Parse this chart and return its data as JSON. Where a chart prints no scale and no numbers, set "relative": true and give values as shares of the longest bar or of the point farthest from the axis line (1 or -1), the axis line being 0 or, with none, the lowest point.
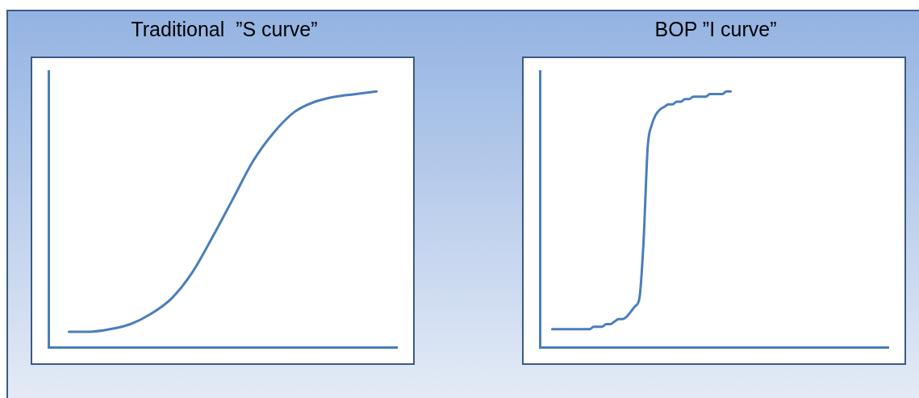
{
  "chart_data": [
    {
      "type": "line",
      "title": "Traditional  ”S curve”",
      "relative": true,
      "grid": false,
      "legend": false,
      "line_style": "solid",
      "marker": "none",
      "categories": [
        null,
        null,
        null,
        null,
        null,
        null,
        null,
        null,
        null,
        null,
        null,
        null,
        null,
        null,
        null,
        null,
        null,
        null
      ],
      "series": [
        {
          "color": "#4a7ebb",
          "values": [
            null,
            0.06,
            0.06,
            0.07,
            0.09,
            0.13,
            0.19,
            0.29,
            0.43,
            0.58,
            0.73,
            0.84,
            0.92,
            0.96,
            0.98,
            0.99,
            1.0,
            null
          ]
        }
      ]
    },
    {
      "type": "line",
      "title": "BOP ”I curve”",
      "relative": true,
      "grid": false,
      "legend": false,
      "line_style": "solid",
      "marker": "none",
      "categories": [
        null,
        null,
        null,
        null,
        null,
        null,
        null,
        null,
        null,
        null,
        null,
        null,
        null,
        null,
        null,
        null,
        null,
        null,
        null,
        null,
        null,
        null,
        null,
        null,
        null,
        null,
        null,
        null,
        null,
        null,
        null,
        null,
        null,
        null,
        null,
        null,
        null,
        null,
        null,
        null,
        null,
        null,
        null,
        null,
        null,
        null,
        null,
        null,
        null,
        null,
        null,
        null,
        null,
        null,
        null,
        null,
        null,
        null,
        null,
        null,
        null,
        null,
        null,
        null,
        null,
        null,
        null,
        null,
        null,
        null,
        null,
        null,
        null,
        null,
        null,
        null,
        null,
        null,
        null,
        null,
        null,
        null,
        null,
        null,
        null
      ],
      "series": [
        {
          "color": "#4a7ebb",
          "values": [
            null,
            null,
            null,
            0.07,
            0.07,
            0.07,
            0.07,
            0.07,
            0.07,
            0.07,
            0.07,
            0.07,
            0.07,
            0.08,
            0.08,
            0.08,
            0.09,
            0.09,
            0.1,
            0.11,
            0.11,
            0.12,
            0.14,
            0.16,
            0.19,
            0.41,
            0.78,
            0.87,
            0.91,
            0.93,
            0.94,
            0.95,
            0.95,
            0.96,
            0.96,
            0.97,
            0.97,
            0.98,
            0.98,
            0.98,
            0.98,
            0.99,
            0.99,
            0.99,
            0.99,
            1.0,
            1.0,
            null,
            null,
            null,
            null,
            null,
            null,
            null,
            null,
            null,
            null,
            null,
            null,
            null,
            null,
            null,
            null,
            null,
            null,
            null,
            null,
            null,
            null,
            null,
            null,
            null,
            null,
            null,
            null,
            null,
            null,
            null,
            null,
            null,
            null,
            null,
            null,
            null,
            null
          ]
        }
      ]
    }
  ]
}
